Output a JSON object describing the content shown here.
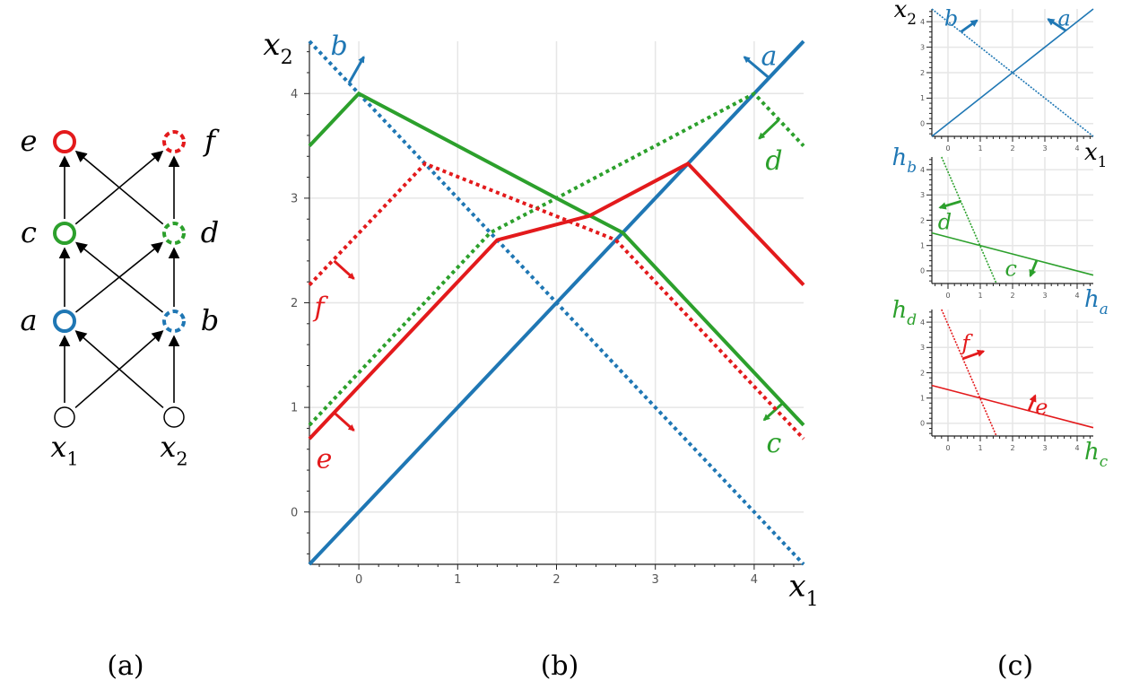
{
  "colors": {
    "blue": "#1f77b4",
    "green": "#2ca02c",
    "red": "#e31a1c",
    "grid": "#e6e6e6",
    "axis": "#222"
  },
  "panel_a": {
    "caption": "(a)",
    "nodes": [
      {
        "id": "e",
        "label": "e",
        "color": "red",
        "style": "solid"
      },
      {
        "id": "f",
        "label": "f",
        "color": "red",
        "style": "dashed"
      },
      {
        "id": "c",
        "label": "c",
        "color": "green",
        "style": "solid"
      },
      {
        "id": "d",
        "label": "d",
        "color": "green",
        "style": "dashed"
      },
      {
        "id": "a",
        "label": "a",
        "color": "blue",
        "style": "solid"
      },
      {
        "id": "b",
        "label": "b",
        "color": "blue",
        "style": "dashed"
      },
      {
        "id": "x1",
        "label": "x",
        "sub": "1",
        "color": "black",
        "style": "solid"
      },
      {
        "id": "x2",
        "label": "x",
        "sub": "2",
        "color": "black",
        "style": "solid"
      }
    ],
    "edges": [
      [
        "x1",
        "a"
      ],
      [
        "x1",
        "b"
      ],
      [
        "x2",
        "a"
      ],
      [
        "x2",
        "b"
      ],
      [
        "a",
        "c"
      ],
      [
        "a",
        "d"
      ],
      [
        "b",
        "c"
      ],
      [
        "b",
        "d"
      ],
      [
        "c",
        "e"
      ],
      [
        "c",
        "f"
      ],
      [
        "d",
        "e"
      ],
      [
        "d",
        "f"
      ]
    ]
  },
  "chart_data": [
    {
      "type": "line",
      "panel": "(b)",
      "caption": "(b)",
      "xlabel": "x",
      "xlabel_sub": "1",
      "ylabel": "x",
      "ylabel_sub": "2",
      "xlim": [
        -0.5,
        4.5
      ],
      "ylim": [
        -0.5,
        4.5
      ],
      "xticks": [
        "0",
        "1",
        "2",
        "3",
        "4"
      ],
      "yticks": [
        "0",
        "1",
        "2",
        "3",
        "4"
      ],
      "grid": true,
      "series": [
        {
          "name": "a",
          "color": "blue",
          "dash": false,
          "points": [
            [
              -0.5,
              -0.5
            ],
            [
              4.5,
              4.5
            ]
          ],
          "label_at": [
            4.15,
            4.35
          ],
          "normal_from": [
            4.15,
            4.15
          ],
          "normal_to": [
            3.9,
            4.35
          ]
        },
        {
          "name": "b",
          "color": "blue",
          "dash": true,
          "points": [
            [
              -0.5,
              4.5
            ],
            [
              4.5,
              -0.5
            ]
          ],
          "label_at": [
            -0.2,
            4.45
          ],
          "normal_from": [
            -0.1,
            4.1
          ],
          "normal_to": [
            0.05,
            4.35
          ]
        },
        {
          "name": "c",
          "color": "green",
          "dash": false,
          "points": [
            [
              -0.5,
              3.5
            ],
            [
              0,
              4
            ],
            [
              2,
              3
            ],
            [
              2.67,
              2.67
            ],
            [
              4.5,
              0.83
            ]
          ],
          "label_at": [
            4.2,
            0.65
          ],
          "normal_from": [
            4.3,
            1.05
          ],
          "normal_to": [
            4.1,
            0.88
          ]
        },
        {
          "name": "d",
          "color": "green",
          "dash": true,
          "points": [
            [
              -0.5,
              0.83
            ],
            [
              1.33,
              2.67
            ],
            [
              2,
              3
            ],
            [
              4,
              4
            ],
            [
              4.5,
              3.5
            ]
          ],
          "label_at": [
            4.2,
            3.35
          ],
          "normal_from": [
            4.25,
            3.75
          ],
          "normal_to": [
            4.05,
            3.57
          ]
        },
        {
          "name": "e",
          "color": "red",
          "dash": false,
          "points": [
            [
              -0.5,
              0.7
            ],
            [
              1.4,
              2.6
            ],
            [
              2.33,
              2.83
            ],
            [
              3.33,
              3.33
            ],
            [
              4.5,
              2.17
            ]
          ],
          "label_at": [
            -0.35,
            0.5
          ],
          "normal_from": [
            -0.25,
            0.95
          ],
          "normal_to": [
            -0.05,
            0.78
          ]
        },
        {
          "name": "f",
          "color": "red",
          "dash": true,
          "points": [
            [
              -0.5,
              2.17
            ],
            [
              0.67,
              3.33
            ],
            [
              2.6,
              2.6
            ],
            [
              4.5,
              0.7
            ]
          ],
          "label_at": [
            -0.4,
            1.95
          ],
          "normal_from": [
            -0.25,
            2.4
          ],
          "normal_to": [
            -0.05,
            2.23
          ]
        }
      ]
    },
    {
      "type": "line",
      "panel": "(c)-top",
      "xlabel": "x",
      "xlabel_sub": "1",
      "ylabel": "x",
      "ylabel_sub": "2",
      "xlabel_color": "black",
      "ylabel_color": "black",
      "xlim": [
        -0.5,
        4.5
      ],
      "ylim": [
        -0.5,
        4.5
      ],
      "xticks": [
        "0",
        "1",
        "2",
        "3",
        "4"
      ],
      "yticks": [
        "0",
        "1",
        "2",
        "3",
        "4"
      ],
      "grid": true,
      "series": [
        {
          "name": "a",
          "color": "blue",
          "dash": false,
          "points": [
            [
              -0.5,
              -0.5
            ],
            [
              4.5,
              4.5
            ]
          ],
          "label_at": [
            3.6,
            4.1
          ],
          "normal_from": [
            3.65,
            3.65
          ],
          "normal_to": [
            3.1,
            4.1
          ]
        },
        {
          "name": "b",
          "color": "blue",
          "dash": true,
          "points": [
            [
              -0.5,
              4.5
            ],
            [
              4.5,
              -0.5
            ]
          ],
          "label_at": [
            0.1,
            4.1
          ],
          "normal_from": [
            0.4,
            3.6
          ],
          "normal_to": [
            0.9,
            4.05
          ]
        }
      ]
    },
    {
      "type": "line",
      "panel": "(c)-middle",
      "xlabel": "h",
      "xlabel_sub": "a",
      "ylabel": "h",
      "ylabel_sub": "b",
      "xlabel_color": "blue",
      "ylabel_color": "blue",
      "xlim": [
        -0.5,
        4.5
      ],
      "ylim": [
        -0.5,
        4.5
      ],
      "xticks": [
        "0",
        "1",
        "2",
        "3",
        "4"
      ],
      "yticks": [
        "0",
        "1",
        "2",
        "3",
        "4"
      ],
      "grid": true,
      "series": [
        {
          "name": "c",
          "color": "green",
          "dash": false,
          "points": [
            [
              -0.5,
              1.5
            ],
            [
              4.5,
              -0.17
            ]
          ],
          "label_at": [
            1.95,
            0.05
          ],
          "normal_from": [
            2.75,
            0.42
          ],
          "normal_to": [
            2.55,
            -0.2
          ]
        },
        {
          "name": "d",
          "color": "green",
          "dash": true,
          "points": [
            [
              -0.2,
              4.5
            ],
            [
              1.5,
              -0.5
            ]
          ],
          "label_at": [
            -0.1,
            1.9
          ],
          "normal_from": [
            0.4,
            2.75
          ],
          "normal_to": [
            -0.25,
            2.5
          ]
        }
      ]
    },
    {
      "type": "line",
      "panel": "(c)-bottom",
      "xlabel": "h",
      "xlabel_sub": "c",
      "ylabel": "h",
      "ylabel_sub": "d",
      "xlabel_color": "green",
      "ylabel_color": "green",
      "xlim": [
        -0.5,
        4.5
      ],
      "ylim": [
        -0.5,
        4.5
      ],
      "xticks": [
        "0",
        "1",
        "2",
        "3",
        "4"
      ],
      "yticks": [
        "0",
        "1",
        "2",
        "3",
        "4"
      ],
      "grid": true,
      "series": [
        {
          "name": "e",
          "color": "red",
          "dash": false,
          "points": [
            [
              -0.5,
              1.5
            ],
            [
              4.5,
              -0.17
            ]
          ],
          "label_at": [
            2.9,
            0.6
          ],
          "normal_from": [
            2.5,
            0.5
          ],
          "normal_to": [
            2.7,
            1.1
          ]
        },
        {
          "name": "f",
          "color": "red",
          "dash": true,
          "points": [
            [
              -0.2,
              4.5
            ],
            [
              1.5,
              -0.5
            ]
          ],
          "label_at": [
            0.55,
            3.15
          ],
          "normal_from": [
            0.45,
            2.55
          ],
          "normal_to": [
            1.1,
            2.85
          ]
        }
      ]
    }
  ],
  "panel_c": {
    "caption": "(c)"
  }
}
